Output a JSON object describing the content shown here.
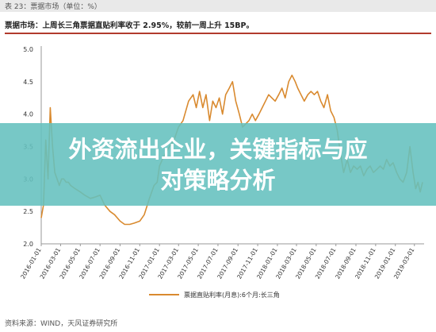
{
  "figure": {
    "label": "表 23：票据市场（单位：%）",
    "headline": "票据市场：上周长三角票据直贴利率收于 2.95%，较前一周上升 15BP。",
    "source": "资料来源：WIND，天风证券研究所"
  },
  "overlay": {
    "title_line1": "外资流出企业，关键指标与应",
    "title_line2": "对策略分析"
  },
  "colors": {
    "series": "#d98a2f",
    "accent": "#b23b2d",
    "overlay": "#64c0be"
  },
  "chart_data": {
    "type": "line",
    "title": "",
    "xlabel": "",
    "ylabel": "",
    "ylim": [
      2.0,
      5.0
    ],
    "y_ticks": [
      "5.0",
      "4.5",
      "4.0",
      "3.5",
      "3.0",
      "2.5",
      "2.0"
    ],
    "x_ticks": [
      "2016-01-01",
      "2016-03-01",
      "2016-05-01",
      "2016-07-01",
      "2016-09-01",
      "2016-11-01",
      "2017-01-01",
      "2017-03-01",
      "2017-05-01",
      "2017-07-01",
      "2017-09-01",
      "2017-11-01",
      "2018-01-01",
      "2018-03-01",
      "2018-05-01",
      "2018-07-01",
      "2018-09-01",
      "2018-11-01",
      "2019-01-01",
      "2019-03-01"
    ],
    "x_range": [
      "2016-01-01",
      "2019-03-31"
    ],
    "grid": false,
    "legend_position": "bottom",
    "series": [
      {
        "name": "票据直贴利率(月息):6个月:长三角",
        "points": [
          [
            "2016-01-01",
            2.4
          ],
          [
            "2016-01-08",
            2.6
          ],
          [
            "2016-01-15",
            3.6
          ],
          [
            "2016-01-22",
            3.0
          ],
          [
            "2016-01-29",
            4.1
          ],
          [
            "2016-02-05",
            3.5
          ],
          [
            "2016-02-12",
            3.1
          ],
          [
            "2016-02-19",
            3.0
          ],
          [
            "2016-02-26",
            2.9
          ],
          [
            "2016-03-04",
            3.0
          ],
          [
            "2016-03-11",
            3.0
          ],
          [
            "2016-03-18",
            2.95
          ],
          [
            "2016-03-25",
            2.95
          ],
          [
            "2016-04-01",
            2.9
          ],
          [
            "2016-04-15",
            2.85
          ],
          [
            "2016-05-01",
            2.8
          ],
          [
            "2016-05-15",
            2.75
          ],
          [
            "2016-06-01",
            2.7
          ],
          [
            "2016-06-15",
            2.72
          ],
          [
            "2016-07-01",
            2.75
          ],
          [
            "2016-07-15",
            2.6
          ],
          [
            "2016-08-01",
            2.5
          ],
          [
            "2016-08-15",
            2.45
          ],
          [
            "2016-09-01",
            2.35
          ],
          [
            "2016-09-15",
            2.3
          ],
          [
            "2016-10-01",
            2.3
          ],
          [
            "2016-10-15",
            2.32
          ],
          [
            "2016-11-01",
            2.35
          ],
          [
            "2016-11-15",
            2.45
          ],
          [
            "2016-12-01",
            2.7
          ],
          [
            "2016-12-15",
            2.9
          ],
          [
            "2016-12-25",
            2.95
          ],
          [
            "2017-01-01",
            3.2
          ],
          [
            "2017-01-10",
            3.3
          ],
          [
            "2017-01-20",
            3.4
          ],
          [
            "2017-02-01",
            3.5
          ],
          [
            "2017-02-15",
            3.6
          ],
          [
            "2017-03-01",
            3.8
          ],
          [
            "2017-03-15",
            3.9
          ],
          [
            "2017-04-01",
            4.2
          ],
          [
            "2017-04-15",
            4.3
          ],
          [
            "2017-04-25",
            4.1
          ],
          [
            "2017-05-05",
            4.35
          ],
          [
            "2017-05-15",
            4.1
          ],
          [
            "2017-05-25",
            4.3
          ],
          [
            "2017-06-05",
            3.9
          ],
          [
            "2017-06-15",
            4.2
          ],
          [
            "2017-06-25",
            4.1
          ],
          [
            "2017-07-05",
            4.25
          ],
          [
            "2017-07-15",
            4.0
          ],
          [
            "2017-07-25",
            4.3
          ],
          [
            "2017-08-05",
            4.4
          ],
          [
            "2017-08-15",
            4.5
          ],
          [
            "2017-08-25",
            4.2
          ],
          [
            "2017-09-05",
            4.0
          ],
          [
            "2017-09-15",
            3.8
          ],
          [
            "2017-09-25",
            3.85
          ],
          [
            "2017-10-05",
            3.9
          ],
          [
            "2017-10-15",
            4.0
          ],
          [
            "2017-10-25",
            3.9
          ],
          [
            "2017-11-05",
            4.0
          ],
          [
            "2017-11-15",
            4.1
          ],
          [
            "2017-11-25",
            4.2
          ],
          [
            "2017-12-05",
            4.3
          ],
          [
            "2017-12-15",
            4.25
          ],
          [
            "2017-12-25",
            4.2
          ],
          [
            "2018-01-05",
            4.3
          ],
          [
            "2018-01-15",
            4.4
          ],
          [
            "2018-01-25",
            4.25
          ],
          [
            "2018-02-05",
            4.5
          ],
          [
            "2018-02-15",
            4.6
          ],
          [
            "2018-02-25",
            4.5
          ],
          [
            "2018-03-05",
            4.4
          ],
          [
            "2018-03-15",
            4.3
          ],
          [
            "2018-03-25",
            4.2
          ],
          [
            "2018-04-05",
            4.3
          ],
          [
            "2018-04-15",
            4.35
          ],
          [
            "2018-04-25",
            4.3
          ],
          [
            "2018-05-05",
            4.35
          ],
          [
            "2018-05-15",
            4.2
          ],
          [
            "2018-05-25",
            4.1
          ],
          [
            "2018-06-05",
            4.3
          ],
          [
            "2018-06-15",
            4.05
          ],
          [
            "2018-06-25",
            3.95
          ],
          [
            "2018-07-05",
            3.75
          ],
          [
            "2018-07-15",
            3.4
          ],
          [
            "2018-07-25",
            3.1
          ],
          [
            "2018-08-05",
            3.3
          ],
          [
            "2018-08-15",
            3.1
          ],
          [
            "2018-08-25",
            3.2
          ],
          [
            "2018-09-05",
            3.15
          ],
          [
            "2018-09-15",
            3.2
          ],
          [
            "2018-09-25",
            3.05
          ],
          [
            "2018-10-05",
            3.15
          ],
          [
            "2018-10-15",
            3.2
          ],
          [
            "2018-10-25",
            3.1
          ],
          [
            "2018-11-05",
            3.15
          ],
          [
            "2018-11-15",
            3.2
          ],
          [
            "2018-11-25",
            3.15
          ],
          [
            "2018-12-05",
            3.3
          ],
          [
            "2018-12-15",
            3.2
          ],
          [
            "2018-12-25",
            3.25
          ],
          [
            "2019-01-05",
            3.1
          ],
          [
            "2019-01-15",
            3.0
          ],
          [
            "2019-01-25",
            2.95
          ],
          [
            "2019-02-05",
            3.1
          ],
          [
            "2019-02-15",
            3.5
          ],
          [
            "2019-02-25",
            3.1
          ],
          [
            "2019-03-05",
            2.85
          ],
          [
            "2019-03-12",
            2.95
          ],
          [
            "2019-03-19",
            2.8
          ],
          [
            "2019-03-26",
            2.95
          ]
        ]
      }
    ]
  }
}
